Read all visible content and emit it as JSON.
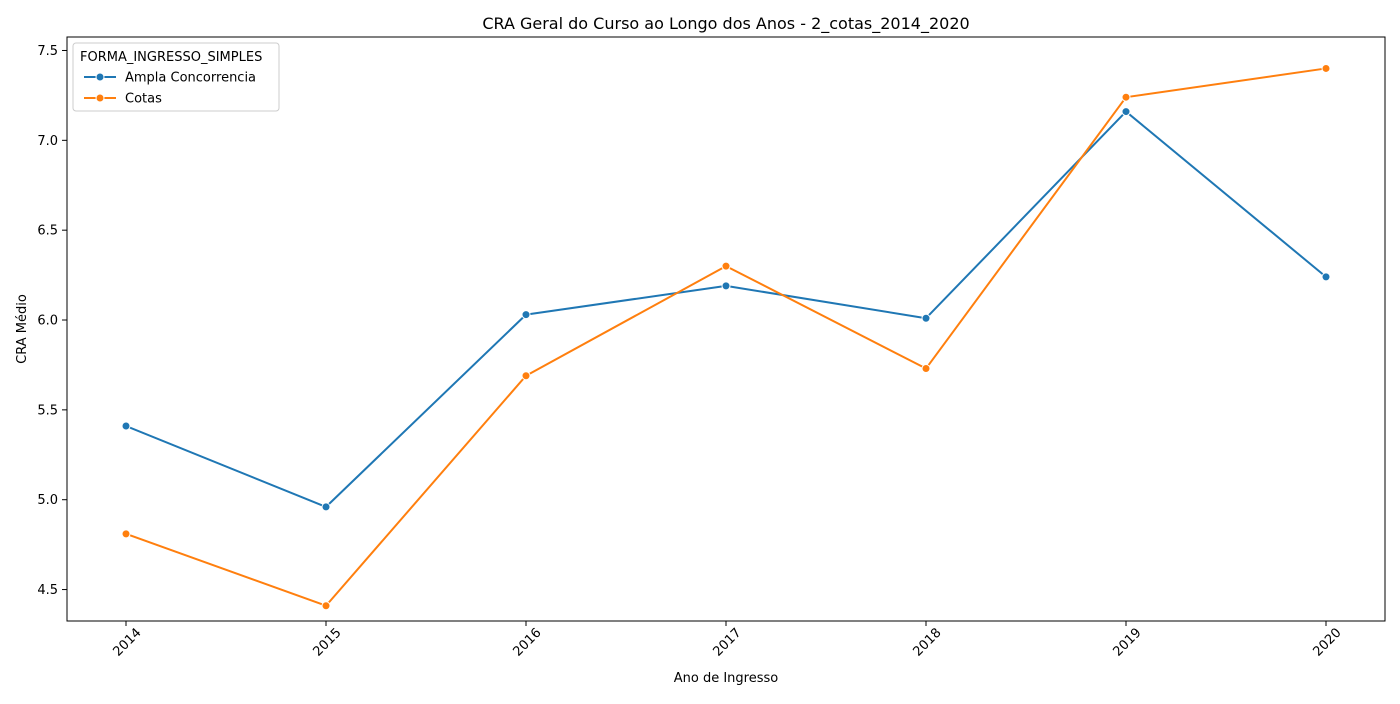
{
  "chart_data": {
    "type": "line",
    "title": "CRA Geral do Curso ao Longo dos Anos - 2_cotas_2014_2020",
    "xlabel": "Ano de Ingresso",
    "ylabel": "CRA Médio",
    "categories": [
      "2014",
      "2015",
      "2016",
      "2017",
      "2018",
      "2019",
      "2020"
    ],
    "yticks": [
      "4.5",
      "5.0",
      "5.5",
      "6.0",
      "6.5",
      "7.0",
      "7.5"
    ],
    "ylim": [
      4.325,
      7.575
    ],
    "grid": false,
    "legend": {
      "title": "FORMA_INGRESSO_SIMPLES",
      "placement": "top-left"
    },
    "series": [
      {
        "name": "Ampla Concorrencia",
        "color": "#1f77b4",
        "marker": "circle",
        "values": [
          5.41,
          4.96,
          6.03,
          6.19,
          6.01,
          7.16,
          6.24
        ]
      },
      {
        "name": "Cotas",
        "color": "#ff7f0e",
        "marker": "circle",
        "values": [
          4.81,
          4.41,
          5.69,
          6.3,
          5.73,
          7.24,
          7.4
        ]
      }
    ]
  }
}
